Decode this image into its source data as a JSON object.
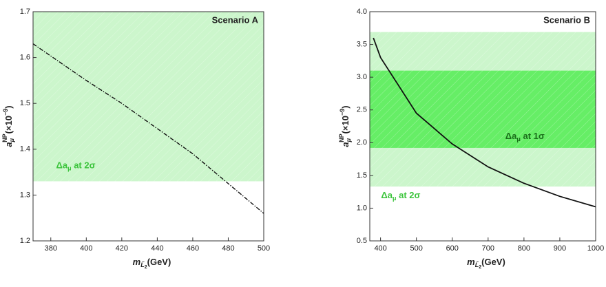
{
  "chart_data": [
    {
      "type": "line",
      "title": "Scenario A",
      "x_label": {
        "main": "m",
        "sub": "L̃",
        "subsub": "2",
        "rest": "(GeV)"
      },
      "y_label": {
        "main": "a",
        "sub": "μ",
        "sup": "NP",
        "rest": "(×10",
        "exp": "−9",
        "close": ")"
      },
      "xlim": [
        370,
        500
      ],
      "xticks": [
        380,
        400,
        420,
        440,
        460,
        480,
        500
      ],
      "ylim": [
        1.2,
        1.7
      ],
      "yticks": [
        1.2,
        1.3,
        1.4,
        1.5,
        1.6,
        1.7
      ],
      "bands": [
        {
          "lower": 1.33,
          "upper": 1.7,
          "color": "#ccf6cc",
          "label": {
            "main": "Δa",
            "sub": "μ",
            "rest": " at 2σ"
          }
        }
      ],
      "series": [
        {
          "x": [
            370,
            400,
            420,
            440,
            460,
            480,
            500
          ],
          "values": [
            1.63,
            1.55,
            1.5,
            1.445,
            1.39,
            1.325,
            1.26
          ],
          "color": "#111111",
          "dash": "dashdot"
        }
      ]
    },
    {
      "type": "line",
      "title": "Scenario B",
      "x_label": {
        "main": "m",
        "sub": "L̃",
        "subsub": "2",
        "rest": "(GeV)"
      },
      "y_label": {
        "main": "a",
        "sub": "μ",
        "sup": "NP",
        "rest": "(×10",
        "exp": "−9",
        "close": ")"
      },
      "xlim": [
        370,
        1000
      ],
      "xticks": [
        400,
        500,
        600,
        700,
        800,
        900,
        1000
      ],
      "ylim": [
        0.5,
        4.0
      ],
      "yticks": [
        0.5,
        {
          "value": 1,
          "label": "1.0"
        },
        1.5,
        {
          "value": 2,
          "label": "2.0"
        },
        2.5,
        {
          "value": 3,
          "label": "3.0"
        },
        3.5,
        {
          "value": 4,
          "label": "4.0"
        }
      ],
      "bands": [
        {
          "lower": 1.33,
          "upper": 3.69,
          "color": "#ccf6cc",
          "label": {
            "main": "Δa",
            "sub": "μ",
            "rest": " at 2σ"
          }
        },
        {
          "lower": 1.92,
          "upper": 3.1,
          "color": "#66ee66",
          "label": {
            "main": "Δa",
            "sub": "μ",
            "rest": " at 1σ"
          }
        }
      ],
      "series": [
        {
          "x": [
            380,
            400,
            500,
            600,
            700,
            800,
            900,
            1000
          ],
          "values": [
            3.6,
            3.3,
            2.45,
            1.98,
            1.63,
            1.38,
            1.18,
            1.02
          ],
          "color": "#111111",
          "dash": "solid"
        }
      ]
    }
  ]
}
